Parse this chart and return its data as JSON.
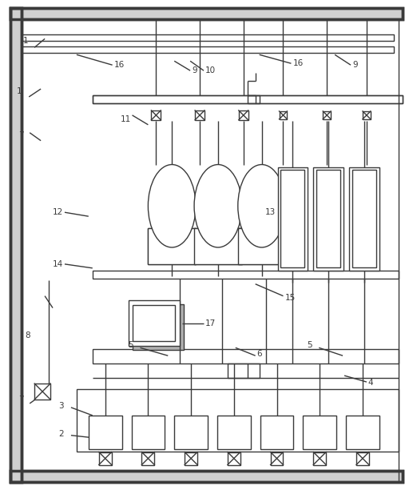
{
  "bg_color": "#ffffff",
  "line_color": "#3a3a3a",
  "lw": 1.0,
  "lw_thick": 2.5,
  "fig_w": 5.17,
  "fig_h": 6.07
}
